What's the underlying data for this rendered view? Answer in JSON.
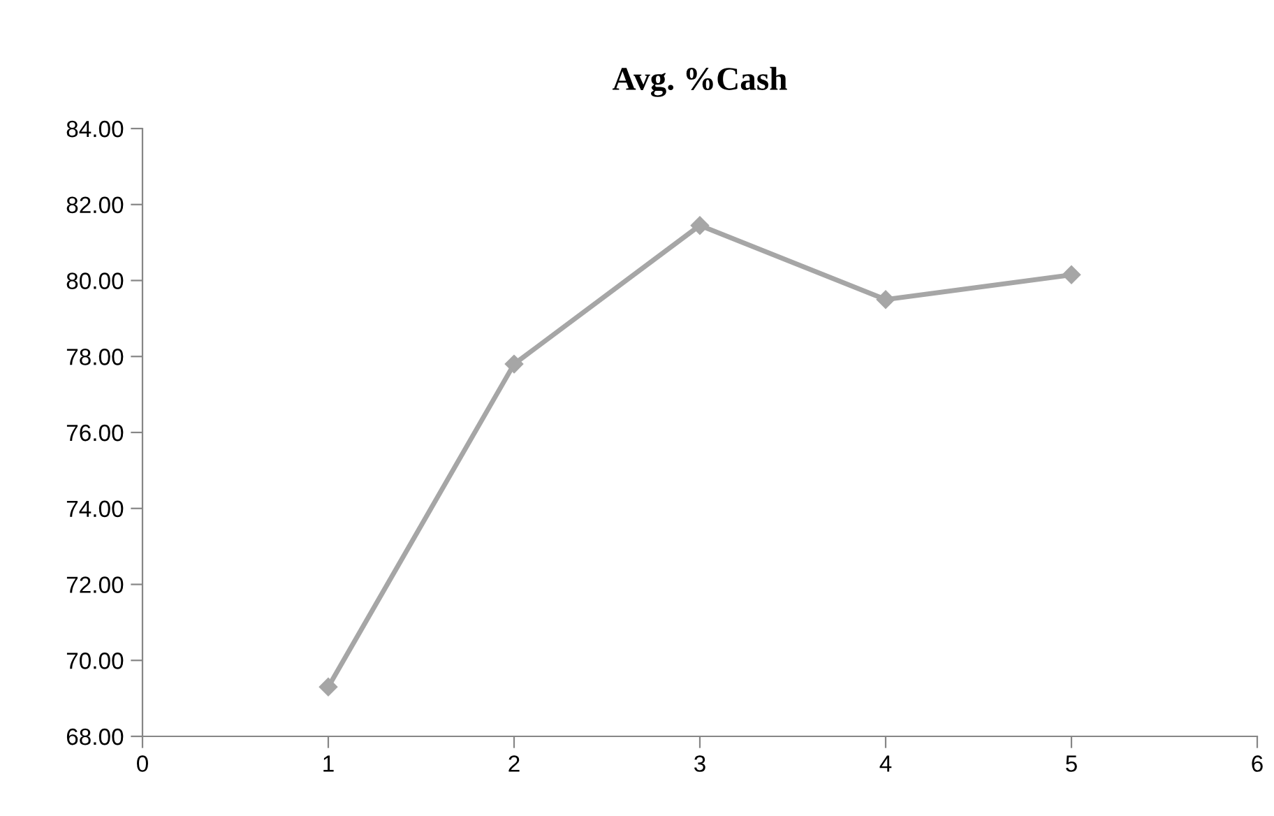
{
  "chart_data": {
    "type": "line",
    "title": "Avg. %Cash",
    "x": [
      1,
      2,
      3,
      4,
      5
    ],
    "series": [
      {
        "color": "#a6a6a6",
        "values": [
          69.3,
          77.8,
          81.45,
          79.5,
          80.15
        ]
      }
    ],
    "xlim": [
      0,
      6
    ],
    "xticks": [
      0,
      1,
      2,
      3,
      4,
      5,
      6
    ],
    "ylim": [
      68,
      84
    ],
    "yticks": [
      {
        "value": 68,
        "label": "68.00"
      },
      {
        "value": 70,
        "label": "70.00"
      },
      {
        "value": 72,
        "label": "72.00"
      },
      {
        "value": 74,
        "label": "74.00"
      },
      {
        "value": 76,
        "label": "76.00"
      },
      {
        "value": 78,
        "label": "78.00"
      },
      {
        "value": 80,
        "label": "80.00"
      },
      {
        "value": 82,
        "label": "82.00"
      },
      {
        "value": 84,
        "label": "84.00"
      }
    ],
    "marker": "diamond",
    "line_style": "solid",
    "grid": false,
    "legend": false
  }
}
